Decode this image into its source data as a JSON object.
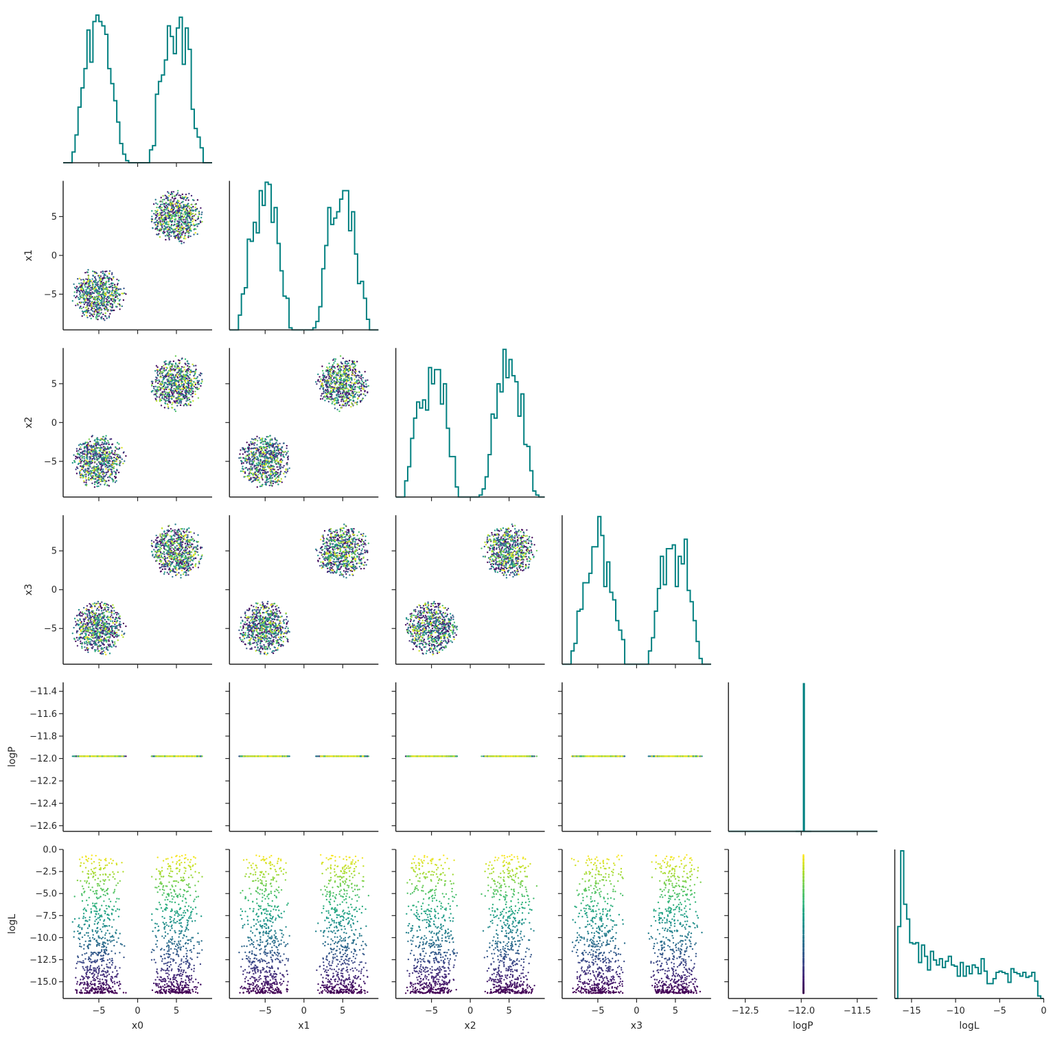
{
  "chart_data": {
    "type": "scatter",
    "layout": "corner-pair-plot",
    "parameters": [
      "x0",
      "x1",
      "x2",
      "x3",
      "logP",
      "logL"
    ],
    "xlabels": [
      "x0",
      "x1",
      "x2",
      "x3",
      "logP",
      "logL"
    ],
    "ylabels": [
      "",
      "x1",
      "x2",
      "x3",
      "logP",
      "logL"
    ],
    "ranges": {
      "x0": [
        -9.6,
        9.6
      ],
      "x1": [
        -9.6,
        9.6
      ],
      "x2": [
        -9.6,
        9.6
      ],
      "x3": [
        -9.6,
        9.6
      ],
      "logP": [
        -12.65,
        -11.32
      ],
      "logL": [
        -16.9,
        0
      ]
    },
    "ticks": {
      "x0": [
        -5,
        0,
        5
      ],
      "x1": [
        -5,
        0,
        5
      ],
      "x2": [
        -5,
        0,
        5
      ],
      "x3": [
        -5,
        0,
        5
      ],
      "logP": [
        -12.6,
        -12.4,
        -12.2,
        -12.0,
        -11.8,
        -11.6,
        -11.4
      ],
      "logL": [
        -15.0,
        -12.5,
        -10.0,
        -7.5,
        -5.0,
        -2.5,
        0.0
      ]
    },
    "xtick_labels": {
      "x0": [
        "−5",
        "0",
        "5"
      ],
      "x1": [
        "−5",
        "0",
        "5"
      ],
      "x2": [
        "−5",
        "0",
        "5"
      ],
      "x3": [
        "−5",
        "0",
        "5"
      ],
      "logP": [
        "−12.5",
        "−12.0",
        "−11.5"
      ],
      "logL": [
        "−15",
        "−10",
        "−5",
        "0"
      ]
    },
    "xtick_values": {
      "logP": [
        -12.5,
        -12.0,
        -11.5
      ],
      "logL": [
        -15,
        -10,
        -5,
        0
      ]
    },
    "ytick_labels": {
      "x1": [
        "−5",
        "0",
        "5"
      ],
      "x2": [
        "−5",
        "0",
        "5"
      ],
      "x3": [
        "−5",
        "0",
        "5"
      ],
      "logP": [
        "−12.6",
        "−12.4",
        "−12.2",
        "−12.0",
        "−11.8",
        "−11.6",
        "−11.4"
      ],
      "logL": [
        "−15.0",
        "−12.5",
        "−10.0",
        "−7.5",
        "−5.0",
        "−2.5",
        "0.0"
      ]
    },
    "samples": {
      "modes": [
        [
          -5,
          -5,
          -5,
          -5
        ],
        [
          5,
          5,
          5,
          5
        ]
      ],
      "radius": 3.6,
      "logP_value": -11.98,
      "logL_min": -16.3,
      "logL_max": -0.6
    },
    "histogram": {
      "bins": 50,
      "color": "#008080"
    },
    "colormap": "viridis",
    "colors": {
      "hist": "#008080",
      "axes": "#262626",
      "viridis": [
        "#440154",
        "#482878",
        "#3e4a89",
        "#31688e",
        "#26828e",
        "#1f9e89",
        "#35b779",
        "#6ece58",
        "#b5de2b",
        "#fde725"
      ]
    },
    "grid": false,
    "legend": "none"
  }
}
